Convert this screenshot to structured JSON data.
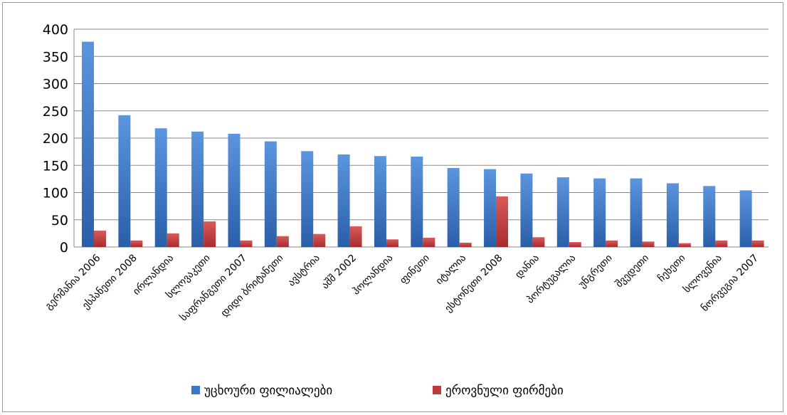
{
  "chart_data": {
    "type": "bar",
    "categories": [
      "გერმანია 2006",
      "ესპანეთი 2008",
      "ირლანდია",
      "სლოვაკეთი",
      "საფრანგეთი 2007",
      "დიდი ბრიტანეთი",
      "ავსტრია",
      "აშშ 2002",
      "ჰოლანდია",
      "ფინეთი",
      "იტალია",
      "ესტონეთი 2008",
      "დანია",
      "პორტუგალია",
      "უნგრეთი",
      "შვედეთი",
      "ჩეხეთი",
      "სლოვენია",
      "ნორვეგია 2007"
    ],
    "series": [
      {
        "name": "უცხოური ფილიალები",
        "color": "#3c78c8",
        "values": [
          377,
          242,
          218,
          212,
          208,
          194,
          176,
          170,
          167,
          166,
          145,
          143,
          135,
          128,
          126,
          126,
          117,
          112,
          104
        ]
      },
      {
        "name": "ეროვნული ფირმები",
        "color": "#c0393b",
        "values": [
          30,
          12,
          25,
          47,
          12,
          20,
          24,
          38,
          14,
          17,
          8,
          93,
          18,
          9,
          12,
          10,
          7,
          12,
          12
        ]
      }
    ],
    "ylim": [
      0,
      400
    ],
    "yticks": [
      0,
      50,
      100,
      150,
      200,
      250,
      300,
      350,
      400
    ],
    "grid": true,
    "legend_position": "bottom"
  }
}
